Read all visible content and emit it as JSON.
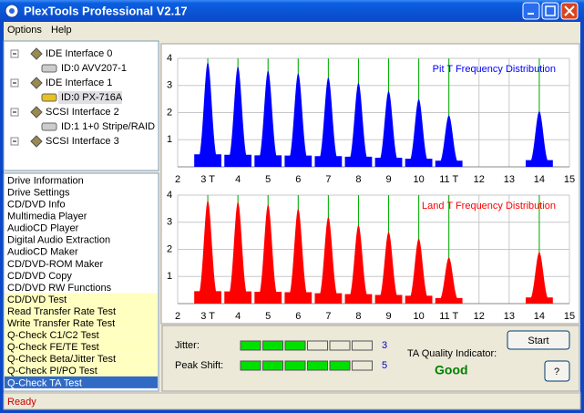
{
  "window": {
    "title": "PlexTools Professional V2.17"
  },
  "menu": [
    "Options",
    "Help"
  ],
  "tree": [
    {
      "label": "IDE Interface 0",
      "children": [
        "ID:0  AVV207-1"
      ]
    },
    {
      "label": "IDE Interface 1",
      "children": [
        "ID:0  PX-716A"
      ]
    },
    {
      "label": "SCSI Interface 2",
      "children": [
        "ID:1  1+0 Stripe/RAID"
      ]
    },
    {
      "label": "SCSI Interface 3",
      "children": []
    }
  ],
  "functions": [
    "Drive Information",
    "Drive Settings",
    "CD/DVD Info",
    "Multimedia Player",
    "AudioCD Player",
    "Digital Audio Extraction",
    "AudioCD Maker",
    "CD/DVD-ROM Maker",
    "CD/DVD Copy",
    "CD/DVD RW Functions",
    "CD/DVD Test",
    "Read Transfer Rate Test",
    "Write Transfer Rate Test",
    "Q-Check C1/C2 Test",
    "Q-Check FE/TE Test",
    "Q-Check Beta/Jitter Test",
    "Q-Check PI/PO Test",
    "Q-Check TA Test"
  ],
  "charts": [
    {
      "type": "area",
      "title": "Pit T Frequency Distribution",
      "color": "#0000ff",
      "x": [
        3,
        4,
        5,
        6,
        7,
        8,
        9,
        10,
        11,
        14
      ],
      "values": [
        3.85,
        3.7,
        3.55,
        3.45,
        3.3,
        3.1,
        2.8,
        2.5,
        1.9,
        2.05
      ],
      "xlim": [
        2,
        15
      ],
      "ylim": [
        0,
        4
      ],
      "xticks": [
        2,
        {
          "value": 3,
          "label": "3 T"
        },
        4,
        5,
        6,
        7,
        8,
        9,
        10,
        {
          "value": 11,
          "label": "11 T"
        },
        12,
        13,
        14,
        15
      ],
      "yticks": [
        1,
        2,
        3,
        4
      ],
      "grid": true
    },
    {
      "type": "area",
      "title": "Land T Frequency Distribution",
      "color": "#ff0000",
      "x": [
        3,
        4,
        5,
        6,
        7,
        8,
        9,
        10,
        11,
        14
      ],
      "values": [
        3.8,
        3.75,
        3.65,
        3.5,
        3.2,
        2.9,
        2.65,
        2.4,
        1.7,
        1.9
      ],
      "xlim": [
        2,
        15
      ],
      "ylim": [
        0,
        4
      ],
      "xticks": [
        2,
        {
          "value": 3,
          "label": "3 T"
        },
        4,
        5,
        6,
        7,
        8,
        9,
        10,
        {
          "value": 11,
          "label": "11 T"
        },
        12,
        13,
        14,
        15
      ],
      "yticks": [
        1,
        2,
        3,
        4
      ],
      "grid": true
    }
  ],
  "jitter": {
    "label": "Jitter:",
    "value": 3
  },
  "peak_shift": {
    "label": "Peak Shift:",
    "value": 5
  },
  "quality": {
    "label": "TA Quality Indicator:",
    "value": "Good"
  },
  "buttons": [
    "Start",
    "?"
  ],
  "status": "Ready"
}
